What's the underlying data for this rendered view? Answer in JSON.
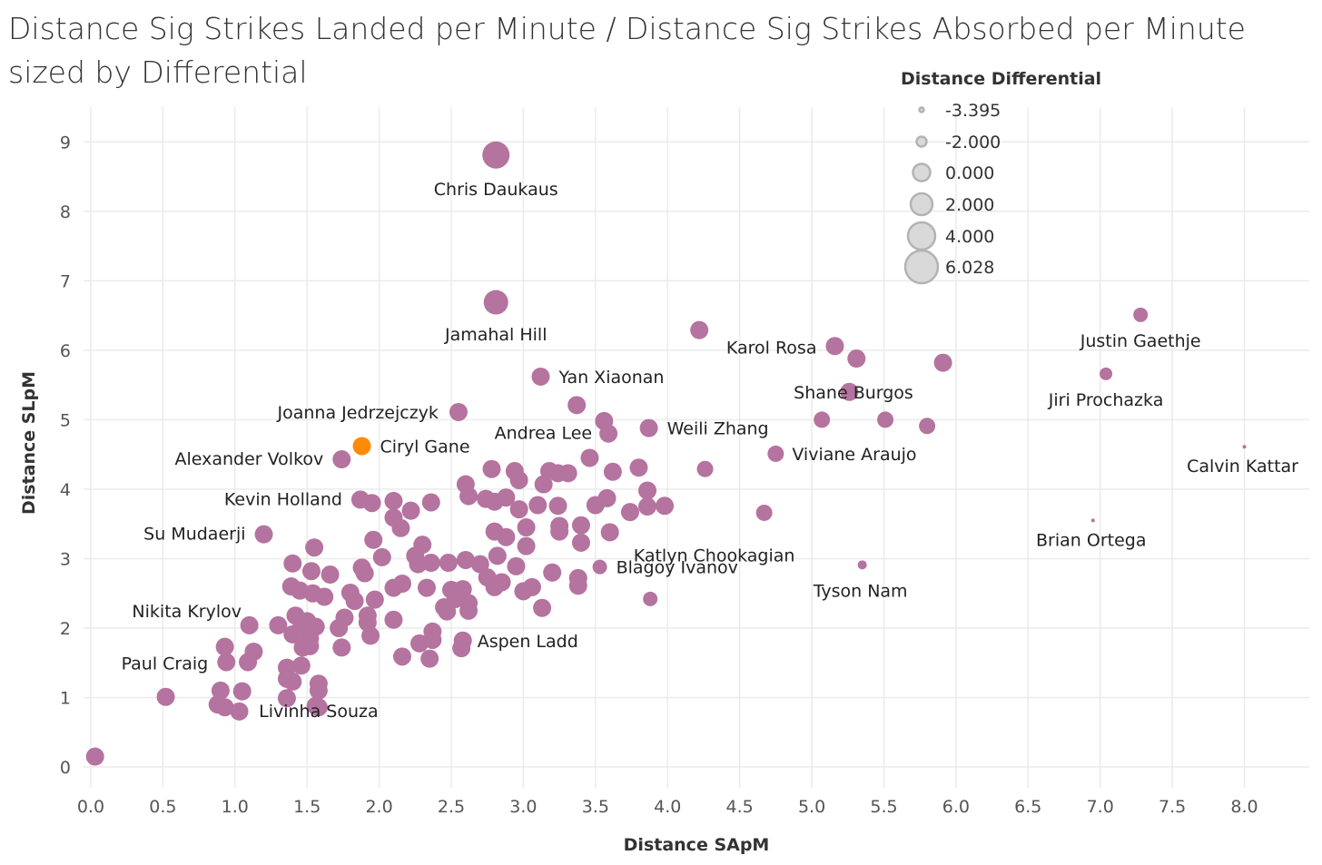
{
  "title": "Distance Sig Strikes Landed per Minute / Distance Sig Strikes Absorbed per Minute sized by Differential",
  "colors": {
    "point": "#b5739f",
    "highlight": "#ff8b07",
    "grid": "#ebebeb",
    "legend_fill": "#d9d9d9",
    "legend_stroke": "#b3b3b3"
  },
  "chart_data": {
    "type": "scatter",
    "title": "Distance Sig Strikes Landed per Minute / Distance Sig Strikes Absorbed per Minute sized by Differential",
    "xlabel": "Distance SApM",
    "ylabel": "Distance SLpM",
    "xlim": [
      -0.05,
      8.45
    ],
    "ylim": [
      -0.3,
      9.5
    ],
    "x_ticks": [
      "0.0",
      "0.5",
      "1.0",
      "1.5",
      "2.0",
      "2.5",
      "3.0",
      "3.5",
      "4.0",
      "4.5",
      "5.0",
      "5.5",
      "6.0",
      "6.5",
      "7.0",
      "7.5",
      "8.0"
    ],
    "y_ticks": [
      "0",
      "1",
      "2",
      "3",
      "4",
      "5",
      "6",
      "7",
      "8",
      "9"
    ],
    "grid": true,
    "size_legend": {
      "title": "Distance Differential",
      "placement": "top-right",
      "values": [
        "-3.395",
        "-2.000",
        "0.000",
        "2.000",
        "4.000",
        "6.028"
      ]
    },
    "points": [
      {
        "x": 2.81,
        "y": 8.81,
        "label": "Chris Daukaus"
      },
      {
        "x": 2.81,
        "y": 6.69,
        "label": "Jamahal Hill"
      },
      {
        "x": 4.22,
        "y": 6.29
      },
      {
        "x": 5.16,
        "y": 6.06,
        "label": "Karol Rosa"
      },
      {
        "x": 5.31,
        "y": 5.88
      },
      {
        "x": 7.28,
        "y": 6.51,
        "label": "Justin Gaethje"
      },
      {
        "x": 5.91,
        "y": 5.82
      },
      {
        "x": 7.04,
        "y": 5.66,
        "label": "Jiri Prochazka"
      },
      {
        "x": 3.12,
        "y": 5.62,
        "label": "Yan Xiaonan"
      },
      {
        "x": 5.26,
        "y": 5.4,
        "label": "Shane Burgos"
      },
      {
        "x": 2.55,
        "y": 5.11,
        "label": "Joanna Jedrzejczyk"
      },
      {
        "x": 3.37,
        "y": 5.21
      },
      {
        "x": 3.56,
        "y": 4.98
      },
      {
        "x": 3.59,
        "y": 4.8,
        "label": "Andrea Lee"
      },
      {
        "x": 3.87,
        "y": 4.88,
        "label": "Weili Zhang"
      },
      {
        "x": 5.07,
        "y": 5.0
      },
      {
        "x": 5.51,
        "y": 5.0
      },
      {
        "x": 5.8,
        "y": 4.91
      },
      {
        "x": 4.75,
        "y": 4.51,
        "label": "Viviane Araujo"
      },
      {
        "x": 1.88,
        "y": 4.62,
        "label": "Ciryl Gane",
        "highlight": true
      },
      {
        "x": 1.74,
        "y": 4.43,
        "label": "Alexander Volkov"
      },
      {
        "x": 8.0,
        "y": 4.61,
        "label": "Calvin Kattar"
      },
      {
        "x": 3.46,
        "y": 4.45
      },
      {
        "x": 2.78,
        "y": 4.29
      },
      {
        "x": 2.94,
        "y": 4.26
      },
      {
        "x": 2.97,
        "y": 4.13
      },
      {
        "x": 3.18,
        "y": 4.26
      },
      {
        "x": 3.24,
        "y": 4.23
      },
      {
        "x": 3.31,
        "y": 4.23
      },
      {
        "x": 3.62,
        "y": 4.25
      },
      {
        "x": 3.8,
        "y": 4.31
      },
      {
        "x": 4.26,
        "y": 4.29
      },
      {
        "x": 2.6,
        "y": 4.07
      },
      {
        "x": 3.14,
        "y": 4.07
      },
      {
        "x": 1.87,
        "y": 3.85,
        "label": "Kevin Holland"
      },
      {
        "x": 1.95,
        "y": 3.8
      },
      {
        "x": 2.1,
        "y": 3.83
      },
      {
        "x": 2.22,
        "y": 3.69
      },
      {
        "x": 2.36,
        "y": 3.81
      },
      {
        "x": 2.62,
        "y": 3.9
      },
      {
        "x": 2.74,
        "y": 3.86
      },
      {
        "x": 2.8,
        "y": 3.82
      },
      {
        "x": 2.88,
        "y": 3.88
      },
      {
        "x": 2.97,
        "y": 3.71
      },
      {
        "x": 3.1,
        "y": 3.77
      },
      {
        "x": 3.24,
        "y": 3.76
      },
      {
        "x": 3.5,
        "y": 3.77
      },
      {
        "x": 3.58,
        "y": 3.87
      },
      {
        "x": 3.86,
        "y": 3.98
      },
      {
        "x": 3.86,
        "y": 3.75
      },
      {
        "x": 3.98,
        "y": 3.76
      },
      {
        "x": 3.74,
        "y": 3.67
      },
      {
        "x": 4.67,
        "y": 3.66
      },
      {
        "x": 2.1,
        "y": 3.59
      },
      {
        "x": 2.15,
        "y": 3.44
      },
      {
        "x": 3.02,
        "y": 3.45
      },
      {
        "x": 3.25,
        "y": 3.47
      },
      {
        "x": 3.25,
        "y": 3.39
      },
      {
        "x": 3.4,
        "y": 3.48
      },
      {
        "x": 3.6,
        "y": 3.38,
        "label": "Katlyn Chookagian"
      },
      {
        "x": 1.2,
        "y": 3.35,
        "label": "Su Mudaerji"
      },
      {
        "x": 2.8,
        "y": 3.39
      },
      {
        "x": 2.88,
        "y": 3.31
      },
      {
        "x": 1.96,
        "y": 3.27
      },
      {
        "x": 2.3,
        "y": 3.2
      },
      {
        "x": 3.4,
        "y": 3.23
      },
      {
        "x": 6.95,
        "y": 3.55,
        "label": "Brian Ortega"
      },
      {
        "x": 1.55,
        "y": 3.16
      },
      {
        "x": 2.02,
        "y": 3.02
      },
      {
        "x": 2.25,
        "y": 3.04
      },
      {
        "x": 2.36,
        "y": 2.94
      },
      {
        "x": 2.48,
        "y": 2.94
      },
      {
        "x": 2.6,
        "y": 2.98
      },
      {
        "x": 2.7,
        "y": 2.92
      },
      {
        "x": 2.82,
        "y": 3.04
      },
      {
        "x": 3.02,
        "y": 3.18
      },
      {
        "x": 1.4,
        "y": 2.93
      },
      {
        "x": 1.53,
        "y": 2.82
      },
      {
        "x": 1.66,
        "y": 2.77
      },
      {
        "x": 1.88,
        "y": 2.87
      },
      {
        "x": 1.9,
        "y": 2.79
      },
      {
        "x": 2.27,
        "y": 2.92
      },
      {
        "x": 2.95,
        "y": 2.89
      },
      {
        "x": 3.2,
        "y": 2.8
      },
      {
        "x": 3.53,
        "y": 2.88,
        "label": "Blagoy Ivanov"
      },
      {
        "x": 5.35,
        "y": 2.91,
        "label": "Tyson Nam"
      },
      {
        "x": 2.75,
        "y": 2.73
      },
      {
        "x": 2.85,
        "y": 2.66
      },
      {
        "x": 3.38,
        "y": 2.72
      },
      {
        "x": 3.38,
        "y": 2.61
      },
      {
        "x": 1.39,
        "y": 2.6
      },
      {
        "x": 1.45,
        "y": 2.54
      },
      {
        "x": 1.54,
        "y": 2.5
      },
      {
        "x": 1.62,
        "y": 2.45
      },
      {
        "x": 1.8,
        "y": 2.51
      },
      {
        "x": 1.83,
        "y": 2.39
      },
      {
        "x": 1.97,
        "y": 2.41
      },
      {
        "x": 2.1,
        "y": 2.58
      },
      {
        "x": 2.16,
        "y": 2.64
      },
      {
        "x": 2.33,
        "y": 2.58
      },
      {
        "x": 2.5,
        "y": 2.55
      },
      {
        "x": 2.58,
        "y": 2.56
      },
      {
        "x": 2.53,
        "y": 2.42
      },
      {
        "x": 2.62,
        "y": 2.36
      },
      {
        "x": 2.8,
        "y": 2.59
      },
      {
        "x": 3.0,
        "y": 2.53
      },
      {
        "x": 3.06,
        "y": 2.59
      },
      {
        "x": 2.45,
        "y": 2.3
      },
      {
        "x": 2.47,
        "y": 2.24
      },
      {
        "x": 2.62,
        "y": 2.25
      },
      {
        "x": 3.13,
        "y": 2.29
      },
      {
        "x": 3.88,
        "y": 2.42
      },
      {
        "x": 1.42,
        "y": 2.18
      },
      {
        "x": 1.5,
        "y": 2.1
      },
      {
        "x": 1.76,
        "y": 2.15
      },
      {
        "x": 1.72,
        "y": 2.0
      },
      {
        "x": 1.92,
        "y": 2.18
      },
      {
        "x": 1.92,
        "y": 2.08
      },
      {
        "x": 2.1,
        "y": 2.12
      },
      {
        "x": 1.1,
        "y": 2.04,
        "label": "Nikita Krylov"
      },
      {
        "x": 1.3,
        "y": 2.04
      },
      {
        "x": 1.46,
        "y": 2.01
      },
      {
        "x": 1.56,
        "y": 2.02
      },
      {
        "x": 1.4,
        "y": 1.91
      },
      {
        "x": 1.52,
        "y": 1.85
      },
      {
        "x": 1.94,
        "y": 1.89
      },
      {
        "x": 2.37,
        "y": 1.95
      },
      {
        "x": 0.93,
        "y": 1.73
      },
      {
        "x": 1.13,
        "y": 1.66
      },
      {
        "x": 1.47,
        "y": 1.72
      },
      {
        "x": 1.52,
        "y": 1.74
      },
      {
        "x": 1.74,
        "y": 1.72
      },
      {
        "x": 2.28,
        "y": 1.78
      },
      {
        "x": 2.37,
        "y": 1.83
      },
      {
        "x": 2.57,
        "y": 1.71
      },
      {
        "x": 2.58,
        "y": 1.82,
        "label": "Aspen Ladd"
      },
      {
        "x": 0.94,
        "y": 1.51,
        "label": "Paul Craig"
      },
      {
        "x": 1.09,
        "y": 1.51
      },
      {
        "x": 1.46,
        "y": 1.46
      },
      {
        "x": 1.36,
        "y": 1.43
      },
      {
        "x": 2.16,
        "y": 1.59
      },
      {
        "x": 2.35,
        "y": 1.56
      },
      {
        "x": 1.36,
        "y": 1.27
      },
      {
        "x": 1.4,
        "y": 1.23
      },
      {
        "x": 1.58,
        "y": 1.2,
        "label": "Livinha Souza"
      },
      {
        "x": 0.9,
        "y": 1.1
      },
      {
        "x": 1.05,
        "y": 1.09
      },
      {
        "x": 1.58,
        "y": 1.1
      },
      {
        "x": 0.52,
        "y": 1.01
      },
      {
        "x": 0.88,
        "y": 0.9
      },
      {
        "x": 0.93,
        "y": 0.86
      },
      {
        "x": 1.03,
        "y": 0.8
      },
      {
        "x": 1.36,
        "y": 0.99
      },
      {
        "x": 1.56,
        "y": 0.88
      },
      {
        "x": 1.58,
        "y": 0.86
      },
      {
        "x": 0.03,
        "y": 0.15
      }
    ]
  }
}
